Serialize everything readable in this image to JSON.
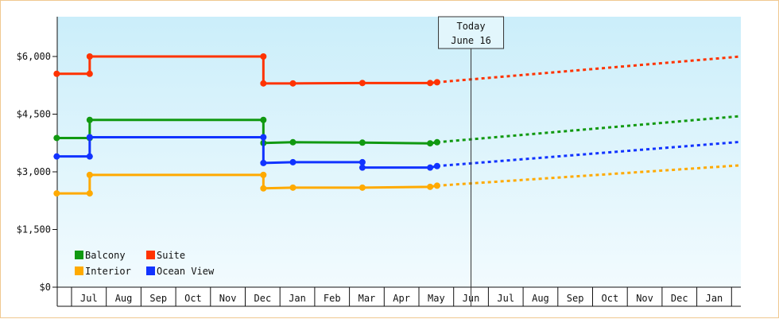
{
  "chart_data": {
    "type": "line",
    "title": "",
    "xlabel": "",
    "ylabel": "",
    "y_ticks": [
      "$0",
      "$1,500",
      "$3,000",
      "$4,500",
      "$6,000"
    ],
    "y_tick_values": [
      0,
      1500,
      3000,
      4500,
      6000
    ],
    "ylim": [
      0,
      6000
    ],
    "x_ticks": [
      "Jul",
      "Aug",
      "Sep",
      "Oct",
      "Nov",
      "Dec",
      "Jan",
      "Feb",
      "Mar",
      "Apr",
      "May",
      "Jun",
      "Jul",
      "Aug",
      "Sep",
      "Oct",
      "Nov",
      "Dec",
      "Jan"
    ],
    "x_range_months": [
      0,
      19.3
    ],
    "today_marker": {
      "line1": "Today",
      "line2": "June 16",
      "x": 11.5
    },
    "legend": {
      "placement": "bottom-left"
    },
    "series": [
      {
        "name": "Suite",
        "color": "#ff3300",
        "points": [
          [
            -0.45,
            5550
          ],
          [
            0.5,
            5550
          ],
          [
            0.5,
            6000
          ],
          [
            5.5,
            6000
          ],
          [
            5.5,
            5300
          ],
          [
            6.35,
            5300
          ],
          [
            8.35,
            5310
          ],
          [
            10.3,
            5310
          ],
          [
            10.5,
            5330
          ]
        ],
        "forecast": [
          [
            10.5,
            5330
          ],
          [
            19.3,
            6000
          ]
        ]
      },
      {
        "name": "Balcony",
        "color": "#119911",
        "points": [
          [
            -0.45,
            3880
          ],
          [
            0.5,
            3880
          ],
          [
            0.5,
            4350
          ],
          [
            5.5,
            4350
          ],
          [
            5.5,
            3750
          ],
          [
            6.35,
            3770
          ],
          [
            8.35,
            3760
          ],
          [
            10.3,
            3740
          ],
          [
            10.5,
            3770
          ]
        ],
        "forecast": [
          [
            10.5,
            3770
          ],
          [
            19.3,
            4450
          ]
        ]
      },
      {
        "name": "Ocean View",
        "color": "#1133ff",
        "points": [
          [
            -0.45,
            3400
          ],
          [
            0.5,
            3400
          ],
          [
            0.5,
            3900
          ],
          [
            5.5,
            3900
          ],
          [
            5.5,
            3230
          ],
          [
            6.35,
            3250
          ],
          [
            8.35,
            3250
          ],
          [
            8.35,
            3110
          ],
          [
            10.3,
            3110
          ],
          [
            10.5,
            3150
          ]
        ],
        "forecast": [
          [
            10.5,
            3150
          ],
          [
            19.3,
            3780
          ]
        ]
      },
      {
        "name": "Interior",
        "color": "#ffaa00",
        "points": [
          [
            -0.45,
            2440
          ],
          [
            0.5,
            2440
          ],
          [
            0.5,
            2920
          ],
          [
            5.5,
            2920
          ],
          [
            5.5,
            2570
          ],
          [
            6.35,
            2590
          ],
          [
            8.35,
            2590
          ],
          [
            10.3,
            2610
          ],
          [
            10.5,
            2640
          ]
        ],
        "forecast": [
          [
            10.5,
            2640
          ],
          [
            19.3,
            3170
          ]
        ]
      }
    ],
    "legend_order": [
      "Balcony",
      "Suite",
      "Interior",
      "Ocean View"
    ]
  }
}
